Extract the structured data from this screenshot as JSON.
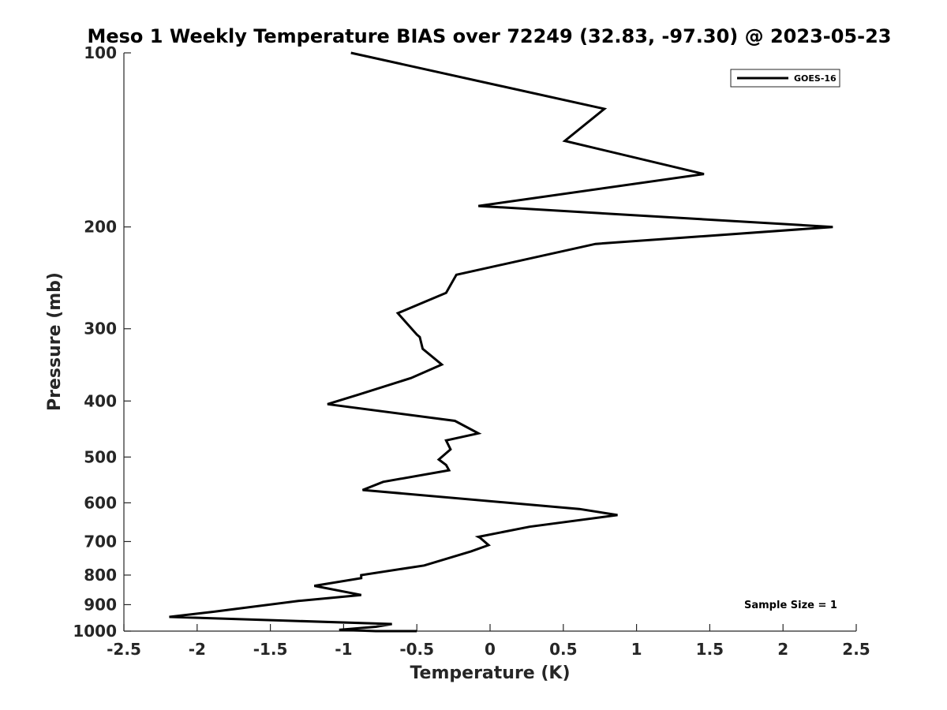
{
  "chart_data": {
    "type": "line",
    "title": "Meso 1 Weekly Temperature BIAS over 72249 (32.83, -97.30) @ 2023-05-23",
    "xlabel": "Temperature (K)",
    "ylabel": "Pressure (mb)",
    "xlim": [
      -2.5,
      2.5
    ],
    "ylim": [
      100,
      1000
    ],
    "y_scale": "log",
    "y_reversed": true,
    "x_ticks": [
      -2.5,
      -2,
      -1.5,
      -1,
      -0.5,
      0,
      0.5,
      1,
      1.5,
      2,
      2.5
    ],
    "x_tick_labels": [
      "-2.5",
      "-2",
      "-1.5",
      "-1",
      "-0.5",
      "0",
      "0.5",
      "1",
      "1.5",
      "2",
      "2.5"
    ],
    "y_ticks": [
      100,
      200,
      300,
      400,
      500,
      600,
      700,
      800,
      900,
      1000
    ],
    "y_tick_labels": [
      "100",
      "200",
      "300",
      "400",
      "500",
      "600",
      "700",
      "800",
      "900",
      "1000"
    ],
    "grid": false,
    "legend": {
      "placement": "top-right",
      "entries": [
        "GOES-16"
      ]
    },
    "annotation": "Sample Size = 1",
    "series": [
      {
        "name": "GOES-16",
        "color": "#000000",
        "x": [
          -0.95,
          0.78,
          0.51,
          1.46,
          -0.08,
          2.34,
          0.72,
          -0.23,
          -0.3,
          -0.63,
          -0.5,
          -0.48,
          -0.46,
          -0.33,
          -0.54,
          -0.9,
          -1.11,
          -0.24,
          -0.08,
          -0.3,
          -0.27,
          -0.35,
          -0.3,
          -0.28,
          -0.73,
          -0.87,
          0.61,
          0.87,
          0.27,
          -0.08,
          -0.07,
          -0.01,
          -0.13,
          -0.45,
          -0.88,
          -0.88,
          -1.2,
          -0.88,
          -1.31,
          -1.89,
          -2.19,
          -0.67,
          -0.78,
          -1.03,
          -0.78,
          -0.5
        ],
        "y": [
          100,
          125,
          142,
          162,
          184,
          200,
          214,
          242,
          260,
          282,
          307,
          310,
          325,
          346,
          365,
          390,
          405,
          433,
          455,
          468,
          485,
          505,
          516,
          527,
          552,
          570,
          615,
          630,
          660,
          687,
          689,
          710,
          728,
          770,
          800,
          810,
          835,
          866,
          887,
          926,
          945,
          972,
          983,
          995,
          1000,
          1000
        ]
      }
    ]
  }
}
